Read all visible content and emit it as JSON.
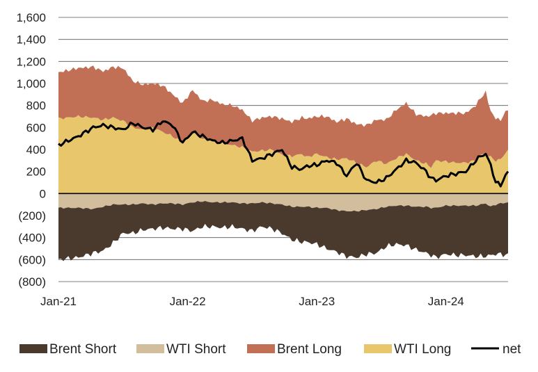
{
  "chart_data": {
    "type": "area",
    "title": "",
    "xlabel": "",
    "ylabel": "",
    "ylim": [
      -800,
      1600
    ],
    "y_ticks": [
      1600,
      1400,
      1200,
      1000,
      800,
      600,
      400,
      200,
      0,
      -200,
      -400,
      -600,
      -800
    ],
    "y_tick_labels": [
      "1,600",
      "1,400",
      "1,200",
      "1,000",
      "800",
      "600",
      "400",
      "200",
      "0",
      "(200)",
      "(400)",
      "(600)",
      "(800)"
    ],
    "x_tick_labels": [
      "Jan-21",
      "Jan-22",
      "Jan-23",
      "Jan-24"
    ],
    "x_tick_positions": [
      0,
      52,
      104,
      156
    ],
    "x_max": 181,
    "legend": [
      "Brent Short",
      "WTI Short",
      "Brent Long",
      "WTI Long",
      "net"
    ],
    "colors": {
      "Brent Short": "#4a3a2e",
      "WTI Short": "#d2bd9c",
      "Brent Long": "#c17055",
      "WTI Long": "#e8c66b",
      "net": "#000000"
    },
    "anchors": {
      "x": [
        0,
        8,
        14,
        18,
        22,
        26,
        30,
        34,
        38,
        42,
        46,
        50,
        54,
        58,
        62,
        66,
        70,
        74,
        78,
        82,
        86,
        90,
        94,
        98,
        100,
        104,
        108,
        112,
        116,
        120,
        124,
        128,
        132,
        136,
        140,
        144,
        148,
        150,
        152,
        156,
        160,
        164,
        168,
        170,
        172,
        174,
        176,
        178,
        181
      ],
      "wti_long": [
        680,
        700,
        690,
        670,
        690,
        660,
        600,
        580,
        600,
        560,
        520,
        460,
        560,
        500,
        480,
        460,
        440,
        420,
        380,
        390,
        400,
        350,
        340,
        360,
        330,
        360,
        330,
        310,
        320,
        280,
        240,
        300,
        270,
        320,
        360,
        300,
        270,
        240,
        300,
        290,
        280,
        280,
        300,
        350,
        360,
        330,
        300,
        310,
        400
      ],
      "brent_long": [
        420,
        440,
        460,
        440,
        460,
        480,
        420,
        410,
        400,
        420,
        380,
        360,
        380,
        340,
        370,
        350,
        360,
        340,
        280,
        300,
        300,
        330,
        310,
        330,
        350,
        340,
        370,
        340,
        360,
        350,
        380,
        370,
        400,
        440,
        460,
        420,
        430,
        470,
        430,
        440,
        450,
        450,
        500,
        520,
        560,
        420,
        380,
        360,
        370
      ],
      "wti_short": [
        -130,
        -130,
        -140,
        -120,
        -100,
        -100,
        -100,
        -90,
        -100,
        -90,
        -90,
        -100,
        -80,
        -70,
        -80,
        -80,
        -80,
        -90,
        -90,
        -80,
        -90,
        -100,
        -120,
        -120,
        -120,
        -130,
        -130,
        -150,
        -160,
        -160,
        -150,
        -140,
        -120,
        -110,
        -110,
        -120,
        -120,
        -130,
        -130,
        -110,
        -110,
        -110,
        -110,
        -100,
        -90,
        -120,
        -100,
        -90,
        -80
      ],
      "brent_short": [
        -470,
        -450,
        -400,
        -400,
        -350,
        -260,
        -260,
        -240,
        -220,
        -220,
        -230,
        -220,
        -260,
        -230,
        -220,
        -230,
        -220,
        -230,
        -250,
        -220,
        -230,
        -260,
        -300,
        -320,
        -320,
        -330,
        -370,
        -380,
        -410,
        -420,
        -400,
        -400,
        -360,
        -350,
        -360,
        -390,
        -420,
        -430,
        -450,
        -440,
        -450,
        -450,
        -460,
        -470,
        -480,
        -440,
        -450,
        -460,
        -480
      ],
      "net": [
        440,
        520,
        600,
        620,
        600,
        580,
        640,
        600,
        580,
        660,
        620,
        460,
        560,
        520,
        480,
        460,
        480,
        500,
        300,
        320,
        360,
        400,
        240,
        220,
        250,
        260,
        300,
        280,
        160,
        280,
        120,
        100,
        140,
        220,
        300,
        280,
        200,
        140,
        120,
        160,
        180,
        200,
        300,
        340,
        360,
        260,
        100,
        80,
        200
      ]
    }
  }
}
